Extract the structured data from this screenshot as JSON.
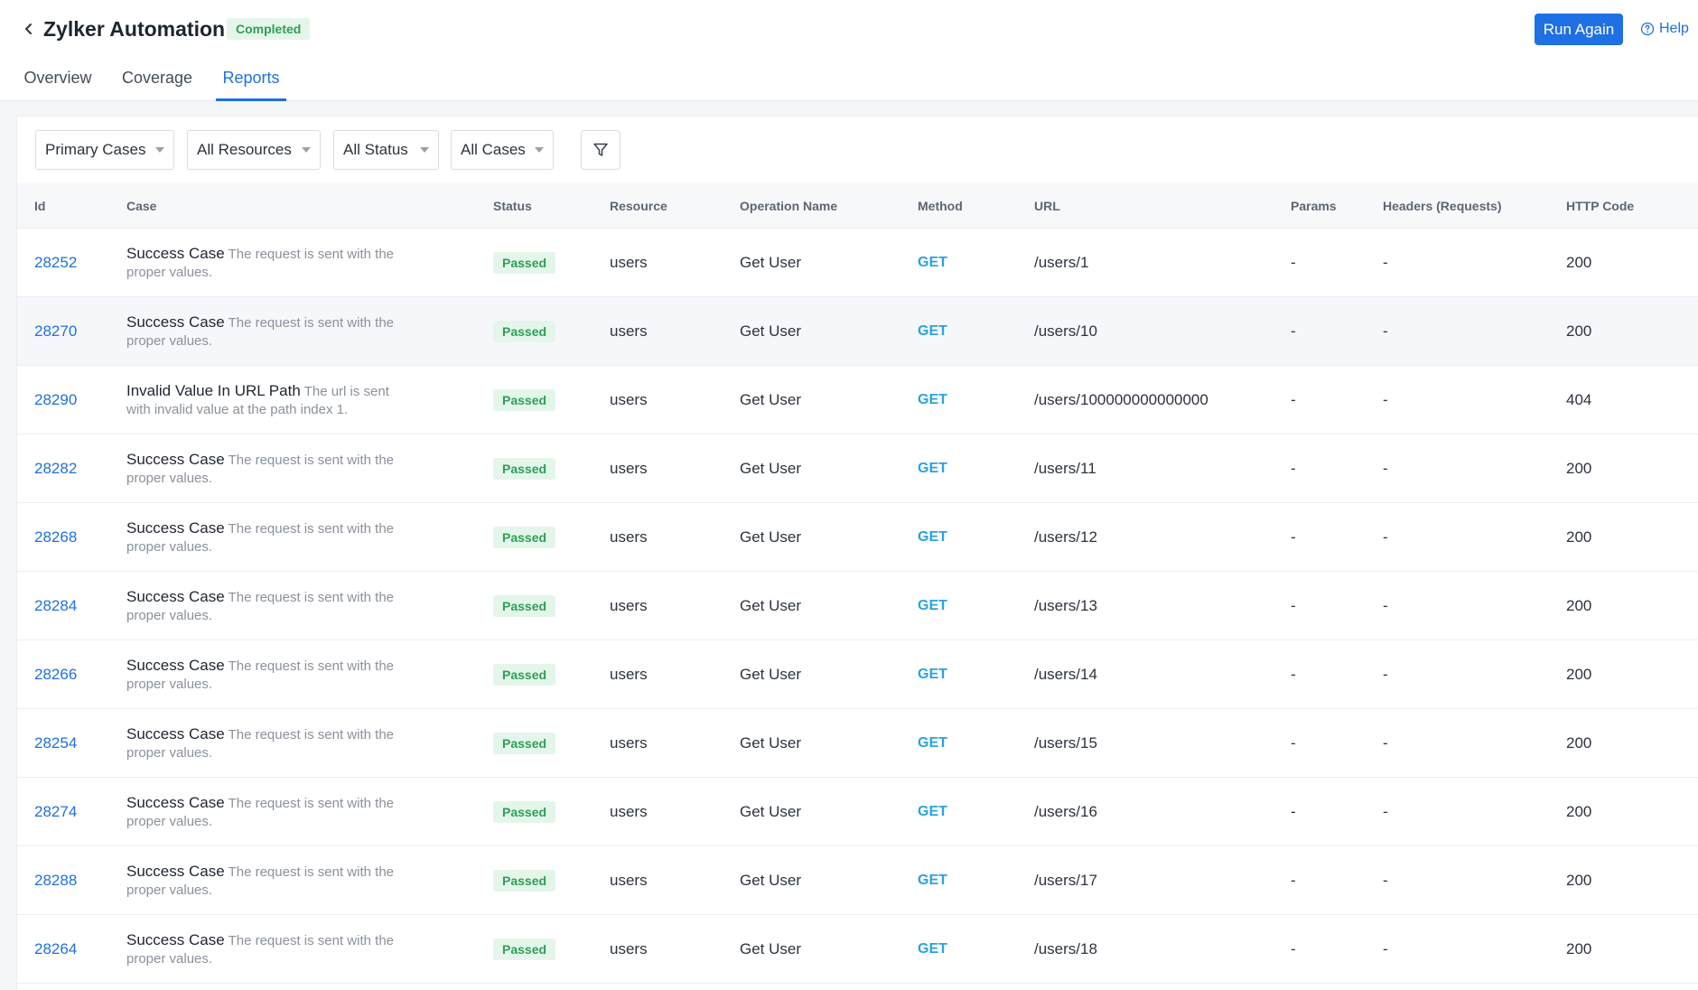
{
  "header": {
    "title": "Zylker Automation",
    "status_badge": "Completed",
    "run_again_label": "Run Again",
    "help_label": "Help",
    "accent_color": "#1f6fe5"
  },
  "tabs": [
    {
      "label": "Overview",
      "active": false
    },
    {
      "label": "Coverage",
      "active": false
    },
    {
      "label": "Reports",
      "active": true
    }
  ],
  "filters": {
    "case_type": "Primary Cases",
    "resource": "All Resources",
    "status": "All Status",
    "cases": "All Cases",
    "filter_icon": "funnel-icon"
  },
  "table": {
    "columns": [
      "Id",
      "Case",
      "Status",
      "Resource",
      "Operation Name",
      "Method",
      "URL",
      "Params",
      "Headers (Requests)",
      "HTTP Code"
    ],
    "rows": [
      {
        "id": "28252",
        "case_title": "Success Case",
        "case_desc": "The request is sent with the proper values.",
        "status": "Passed",
        "resource": "users",
        "operation": "Get User",
        "method": "GET",
        "url": "/users/1",
        "params": "-",
        "headers": "-",
        "http_code": "200"
      },
      {
        "id": "28270",
        "case_title": "Success Case",
        "case_desc": "The request is sent with the proper values.",
        "status": "Passed",
        "resource": "users",
        "operation": "Get User",
        "method": "GET",
        "url": "/users/10",
        "params": "-",
        "headers": "-",
        "http_code": "200"
      },
      {
        "id": "28290",
        "case_title": "Invalid Value In URL Path",
        "case_desc": "The url is sent with invalid value at the path index 1.",
        "status": "Passed",
        "resource": "users",
        "operation": "Get User",
        "method": "GET",
        "url": "/users/100000000000000",
        "params": "-",
        "headers": "-",
        "http_code": "404"
      },
      {
        "id": "28282",
        "case_title": "Success Case",
        "case_desc": "The request is sent with the proper values.",
        "status": "Passed",
        "resource": "users",
        "operation": "Get User",
        "method": "GET",
        "url": "/users/11",
        "params": "-",
        "headers": "-",
        "http_code": "200"
      },
      {
        "id": "28268",
        "case_title": "Success Case",
        "case_desc": "The request is sent with the proper values.",
        "status": "Passed",
        "resource": "users",
        "operation": "Get User",
        "method": "GET",
        "url": "/users/12",
        "params": "-",
        "headers": "-",
        "http_code": "200"
      },
      {
        "id": "28284",
        "case_title": "Success Case",
        "case_desc": "The request is sent with the proper values.",
        "status": "Passed",
        "resource": "users",
        "operation": "Get User",
        "method": "GET",
        "url": "/users/13",
        "params": "-",
        "headers": "-",
        "http_code": "200"
      },
      {
        "id": "28266",
        "case_title": "Success Case",
        "case_desc": "The request is sent with the proper values.",
        "status": "Passed",
        "resource": "users",
        "operation": "Get User",
        "method": "GET",
        "url": "/users/14",
        "params": "-",
        "headers": "-",
        "http_code": "200"
      },
      {
        "id": "28254",
        "case_title": "Success Case",
        "case_desc": "The request is sent with the proper values.",
        "status": "Passed",
        "resource": "users",
        "operation": "Get User",
        "method": "GET",
        "url": "/users/15",
        "params": "-",
        "headers": "-",
        "http_code": "200"
      },
      {
        "id": "28274",
        "case_title": "Success Case",
        "case_desc": "The request is sent with the proper values.",
        "status": "Passed",
        "resource": "users",
        "operation": "Get User",
        "method": "GET",
        "url": "/users/16",
        "params": "-",
        "headers": "-",
        "http_code": "200"
      },
      {
        "id": "28288",
        "case_title": "Success Case",
        "case_desc": "The request is sent with the proper values.",
        "status": "Passed",
        "resource": "users",
        "operation": "Get User",
        "method": "GET",
        "url": "/users/17",
        "params": "-",
        "headers": "-",
        "http_code": "200"
      },
      {
        "id": "28264",
        "case_title": "Success Case",
        "case_desc": "The request is sent with the proper values.",
        "status": "Passed",
        "resource": "users",
        "operation": "Get User",
        "method": "GET",
        "url": "/users/18",
        "params": "-",
        "headers": "-",
        "http_code": "200"
      }
    ]
  }
}
